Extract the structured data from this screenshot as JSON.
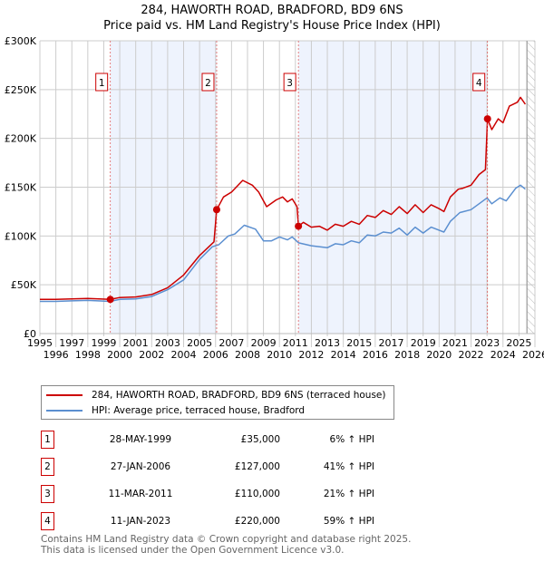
{
  "title_line1": "284, HAWORTH ROAD, BRADFORD, BD9 6NS",
  "title_line2": "Price paid vs. HM Land Registry's House Price Index (HPI)",
  "chart_data": {
    "type": "line",
    "title": "Price paid vs. HM Land Registry's House Price Index (HPI)",
    "xlim": [
      1995,
      2026
    ],
    "ylim": [
      0,
      300000
    ],
    "x_ticks": [
      "1995",
      "1996",
      "1997",
      "1998",
      "1999",
      "2000",
      "2001",
      "2002",
      "2003",
      "2004",
      "2005",
      "2006",
      "2007",
      "2008",
      "2009",
      "2010",
      "2011",
      "2012",
      "2013",
      "2014",
      "2015",
      "2016",
      "2017",
      "2018",
      "2019",
      "2020",
      "2021",
      "2022",
      "2023",
      "2024",
      "2025",
      "2026"
    ],
    "y_ticks": [
      {
        "v": 0,
        "label": "£0"
      },
      {
        "v": 50000,
        "label": "£50K"
      },
      {
        "v": 100000,
        "label": "£100K"
      },
      {
        "v": 150000,
        "label": "£150K"
      },
      {
        "v": 200000,
        "label": "£200K"
      },
      {
        "v": 250000,
        "label": "£250K"
      },
      {
        "v": 300000,
        "label": "£300K"
      }
    ],
    "grid": true,
    "hatch_from": 2025.5,
    "colors": {
      "property": "#cc0000",
      "hpi": "#5b8fd0",
      "shade": "#eef3fd"
    },
    "series": [
      {
        "name": "284, HAWORTH ROAD, BRADFORD, BD9 6NS (terraced house)",
        "x": [
          1995,
          1996,
          1997,
          1998,
          1999.4,
          2000,
          2001,
          2002,
          2003,
          2004,
          2005,
          2005.9,
          2006.07,
          2006.5,
          2007,
          2007.7,
          2008.3,
          2008.7,
          2009.2,
          2009.8,
          2010.2,
          2010.5,
          2010.8,
          2011.1,
          2011.19,
          2011.5,
          2012,
          2012.5,
          2013,
          2013.5,
          2014,
          2014.5,
          2015,
          2015.5,
          2016,
          2016.5,
          2017,
          2017.5,
          2018,
          2018.5,
          2019,
          2019.5,
          2020,
          2020.3,
          2020.7,
          2021.2,
          2021.5,
          2022,
          2022.5,
          2022.9,
          2023.03,
          2023.3,
          2023.7,
          2024,
          2024.4,
          2024.9,
          2025.1,
          2025.4
        ],
        "y": [
          35000,
          35000,
          35500,
          36000,
          35000,
          37000,
          37500,
          40000,
          47000,
          60000,
          80000,
          94000,
          127000,
          140000,
          145000,
          157000,
          152000,
          145000,
          130000,
          137000,
          140000,
          135000,
          138000,
          130000,
          110000,
          114000,
          109000,
          110000,
          106000,
          112000,
          110000,
          115000,
          112000,
          121000,
          119000,
          126000,
          122000,
          130000,
          123000,
          132000,
          124000,
          132000,
          128000,
          125000,
          140000,
          148000,
          149000,
          152000,
          163000,
          168000,
          220000,
          209000,
          220000,
          216000,
          233000,
          237000,
          242000,
          235000
        ]
      },
      {
        "name": "HPI: Average price, terraced house, Bradford",
        "x": [
          1995,
          1996,
          1997,
          1998,
          1999.4,
          2000,
          2001,
          2002,
          2003,
          2004,
          2005,
          2005.8,
          2006.2,
          2006.8,
          2007.2,
          2007.8,
          2008.5,
          2009,
          2009.5,
          2010,
          2010.5,
          2010.8,
          2011.2,
          2012,
          2013,
          2013.5,
          2014,
          2014.5,
          2015,
          2015.5,
          2016,
          2016.5,
          2017,
          2017.5,
          2018,
          2018.5,
          2019,
          2019.5,
          2020.3,
          2020.7,
          2021.3,
          2022,
          2022.5,
          2023,
          2023.3,
          2023.8,
          2024.2,
          2024.8,
          2025.1,
          2025.4
        ],
        "y": [
          33000,
          33000,
          33500,
          34000,
          33000,
          35000,
          35500,
          38000,
          45000,
          55000,
          76000,
          89000,
          91000,
          100000,
          102000,
          111000,
          107000,
          95000,
          95000,
          99000,
          96000,
          99000,
          93000,
          90000,
          88000,
          92000,
          91000,
          95000,
          93000,
          101000,
          100000,
          104000,
          103000,
          108000,
          101000,
          109000,
          103000,
          109000,
          104000,
          115000,
          124000,
          127000,
          133000,
          139000,
          133000,
          139000,
          136000,
          149000,
          152000,
          148000
        ]
      }
    ],
    "sales": [
      {
        "n": "1",
        "x": 1999.41,
        "y": 35000
      },
      {
        "n": "2",
        "x": 2006.07,
        "y": 127000
      },
      {
        "n": "3",
        "x": 2011.19,
        "y": 110000
      },
      {
        "n": "4",
        "x": 2023.03,
        "y": 220000
      }
    ]
  },
  "legend": {
    "property": "284, HAWORTH ROAD, BRADFORD, BD9 6NS (terraced house)",
    "hpi": "HPI: Average price, terraced house, Bradford"
  },
  "sales_table": [
    {
      "n": "1",
      "date": "28-MAY-1999",
      "price": "£35,000",
      "hpi": "6% ↑ HPI"
    },
    {
      "n": "2",
      "date": "27-JAN-2006",
      "price": "£127,000",
      "hpi": "41% ↑ HPI"
    },
    {
      "n": "3",
      "date": "11-MAR-2011",
      "price": "£110,000",
      "hpi": "21% ↑ HPI"
    },
    {
      "n": "4",
      "date": "11-JAN-2023",
      "price": "£220,000",
      "hpi": "59% ↑ HPI"
    }
  ],
  "footer_line1": "Contains HM Land Registry data © Crown copyright and database right 2025.",
  "footer_line2": "This data is licensed under the Open Government Licence v3.0."
}
